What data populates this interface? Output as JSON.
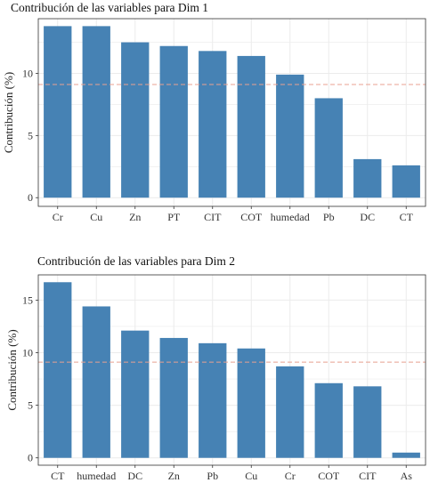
{
  "colors": {
    "bar": "#4682B4",
    "reference_line": "#E8A090",
    "grid": "#EBEBEB",
    "panel_border": "#333333"
  },
  "chart_data": [
    {
      "type": "bar",
      "title": "Contribución de las variables para Dim 1",
      "xlabel": "",
      "ylabel": "Contribución (%)",
      "categories": [
        "Cr",
        "Cu",
        "Zn",
        "PT",
        "CIT",
        "COT",
        "humedad",
        "Pb",
        "DC",
        "CT"
      ],
      "values": [
        13.8,
        13.8,
        12.5,
        12.2,
        11.8,
        11.4,
        9.9,
        8.0,
        3.1,
        2.6
      ],
      "reference_line": 9.1,
      "ylim": [
        -0.7,
        14.4
      ],
      "yticks": [
        0,
        5,
        10
      ],
      "grid": true,
      "legend": "none"
    },
    {
      "type": "bar",
      "title": "Contribución de las variables para Dim 2",
      "xlabel": "",
      "ylabel": "Contribución (%)",
      "categories": [
        "CT",
        "humedad",
        "DC",
        "Zn",
        "Pb",
        "Cu",
        "Cr",
        "COT",
        "CIT",
        "As"
      ],
      "values": [
        16.7,
        14.4,
        12.1,
        11.4,
        10.9,
        10.4,
        8.7,
        7.1,
        6.8,
        0.5
      ],
      "reference_line": 9.1,
      "ylim": [
        -0.7,
        17.4
      ],
      "yticks": [
        0,
        5,
        10,
        15
      ],
      "grid": true,
      "legend": "none"
    }
  ]
}
